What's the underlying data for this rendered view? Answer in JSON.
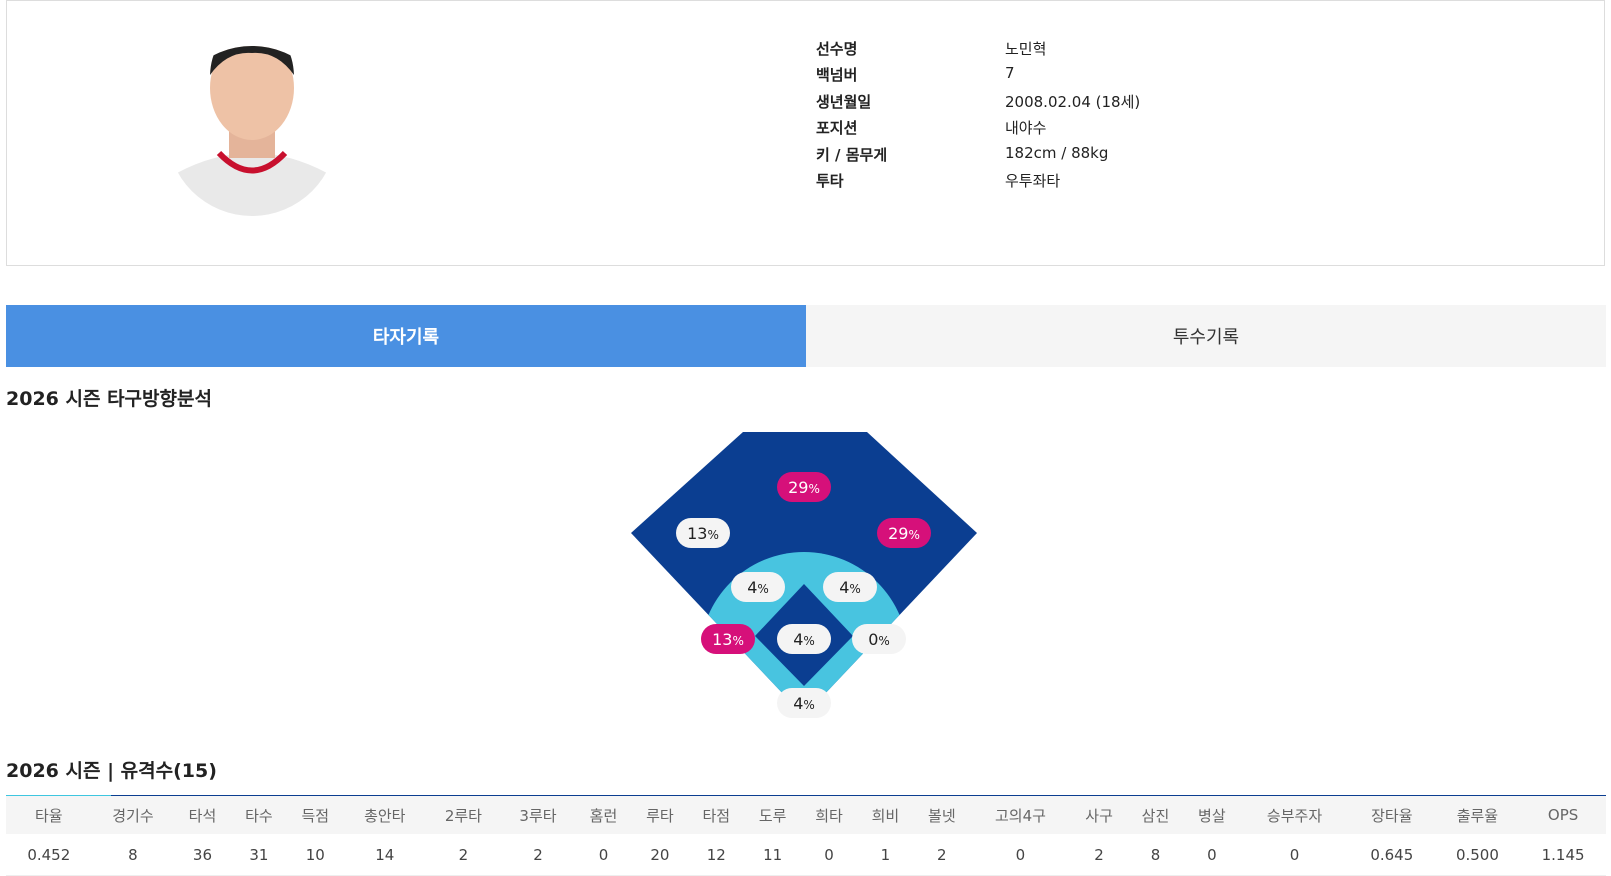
{
  "profile": {
    "rows": [
      {
        "label": "선수명",
        "value": "노민혁"
      },
      {
        "label": "백넘버",
        "value": "7"
      },
      {
        "label": "생년월일",
        "value": "2008.02.04 (18세)"
      },
      {
        "label": "포지션",
        "value": "내야수"
      },
      {
        "label": "키 / 몸무게",
        "value": "182cm / 88kg"
      },
      {
        "label": "투타",
        "value": "우투좌타"
      }
    ]
  },
  "tabs": [
    {
      "label": "타자기록",
      "active": true
    },
    {
      "label": "투수기록",
      "active": false
    }
  ],
  "direction": {
    "title": "2026 시즌 타구방향분석",
    "percent_sign": "%",
    "zones": [
      {
        "value": 29,
        "highlight": true
      },
      {
        "value": 13,
        "highlight": false
      },
      {
        "value": 29,
        "highlight": true
      },
      {
        "value": 4,
        "highlight": false
      },
      {
        "value": 4,
        "highlight": false
      },
      {
        "value": 13,
        "highlight": true
      },
      {
        "value": 4,
        "highlight": false
      },
      {
        "value": 0,
        "highlight": false
      },
      {
        "value": 4,
        "highlight": false
      }
    ]
  },
  "stats": {
    "title": "2026 시즌 | 유격수(15)",
    "headers": [
      "타율",
      "경기수",
      "타석",
      "타수",
      "득점",
      "총안타",
      "2루타",
      "3루타",
      "홈런",
      "루타",
      "타점",
      "도루",
      "희타",
      "희비",
      "볼넷",
      "고의4구",
      "사구",
      "삼진",
      "병살",
      "승부주자",
      "장타율",
      "출루율",
      "OPS"
    ],
    "row": [
      "0.452",
      "8",
      "36",
      "31",
      "10",
      "14",
      "2",
      "2",
      "0",
      "20",
      "12",
      "11",
      "0",
      "1",
      "2",
      "0",
      "2",
      "8",
      "0",
      "0",
      "0.645",
      "0.500",
      "1.145"
    ]
  }
}
